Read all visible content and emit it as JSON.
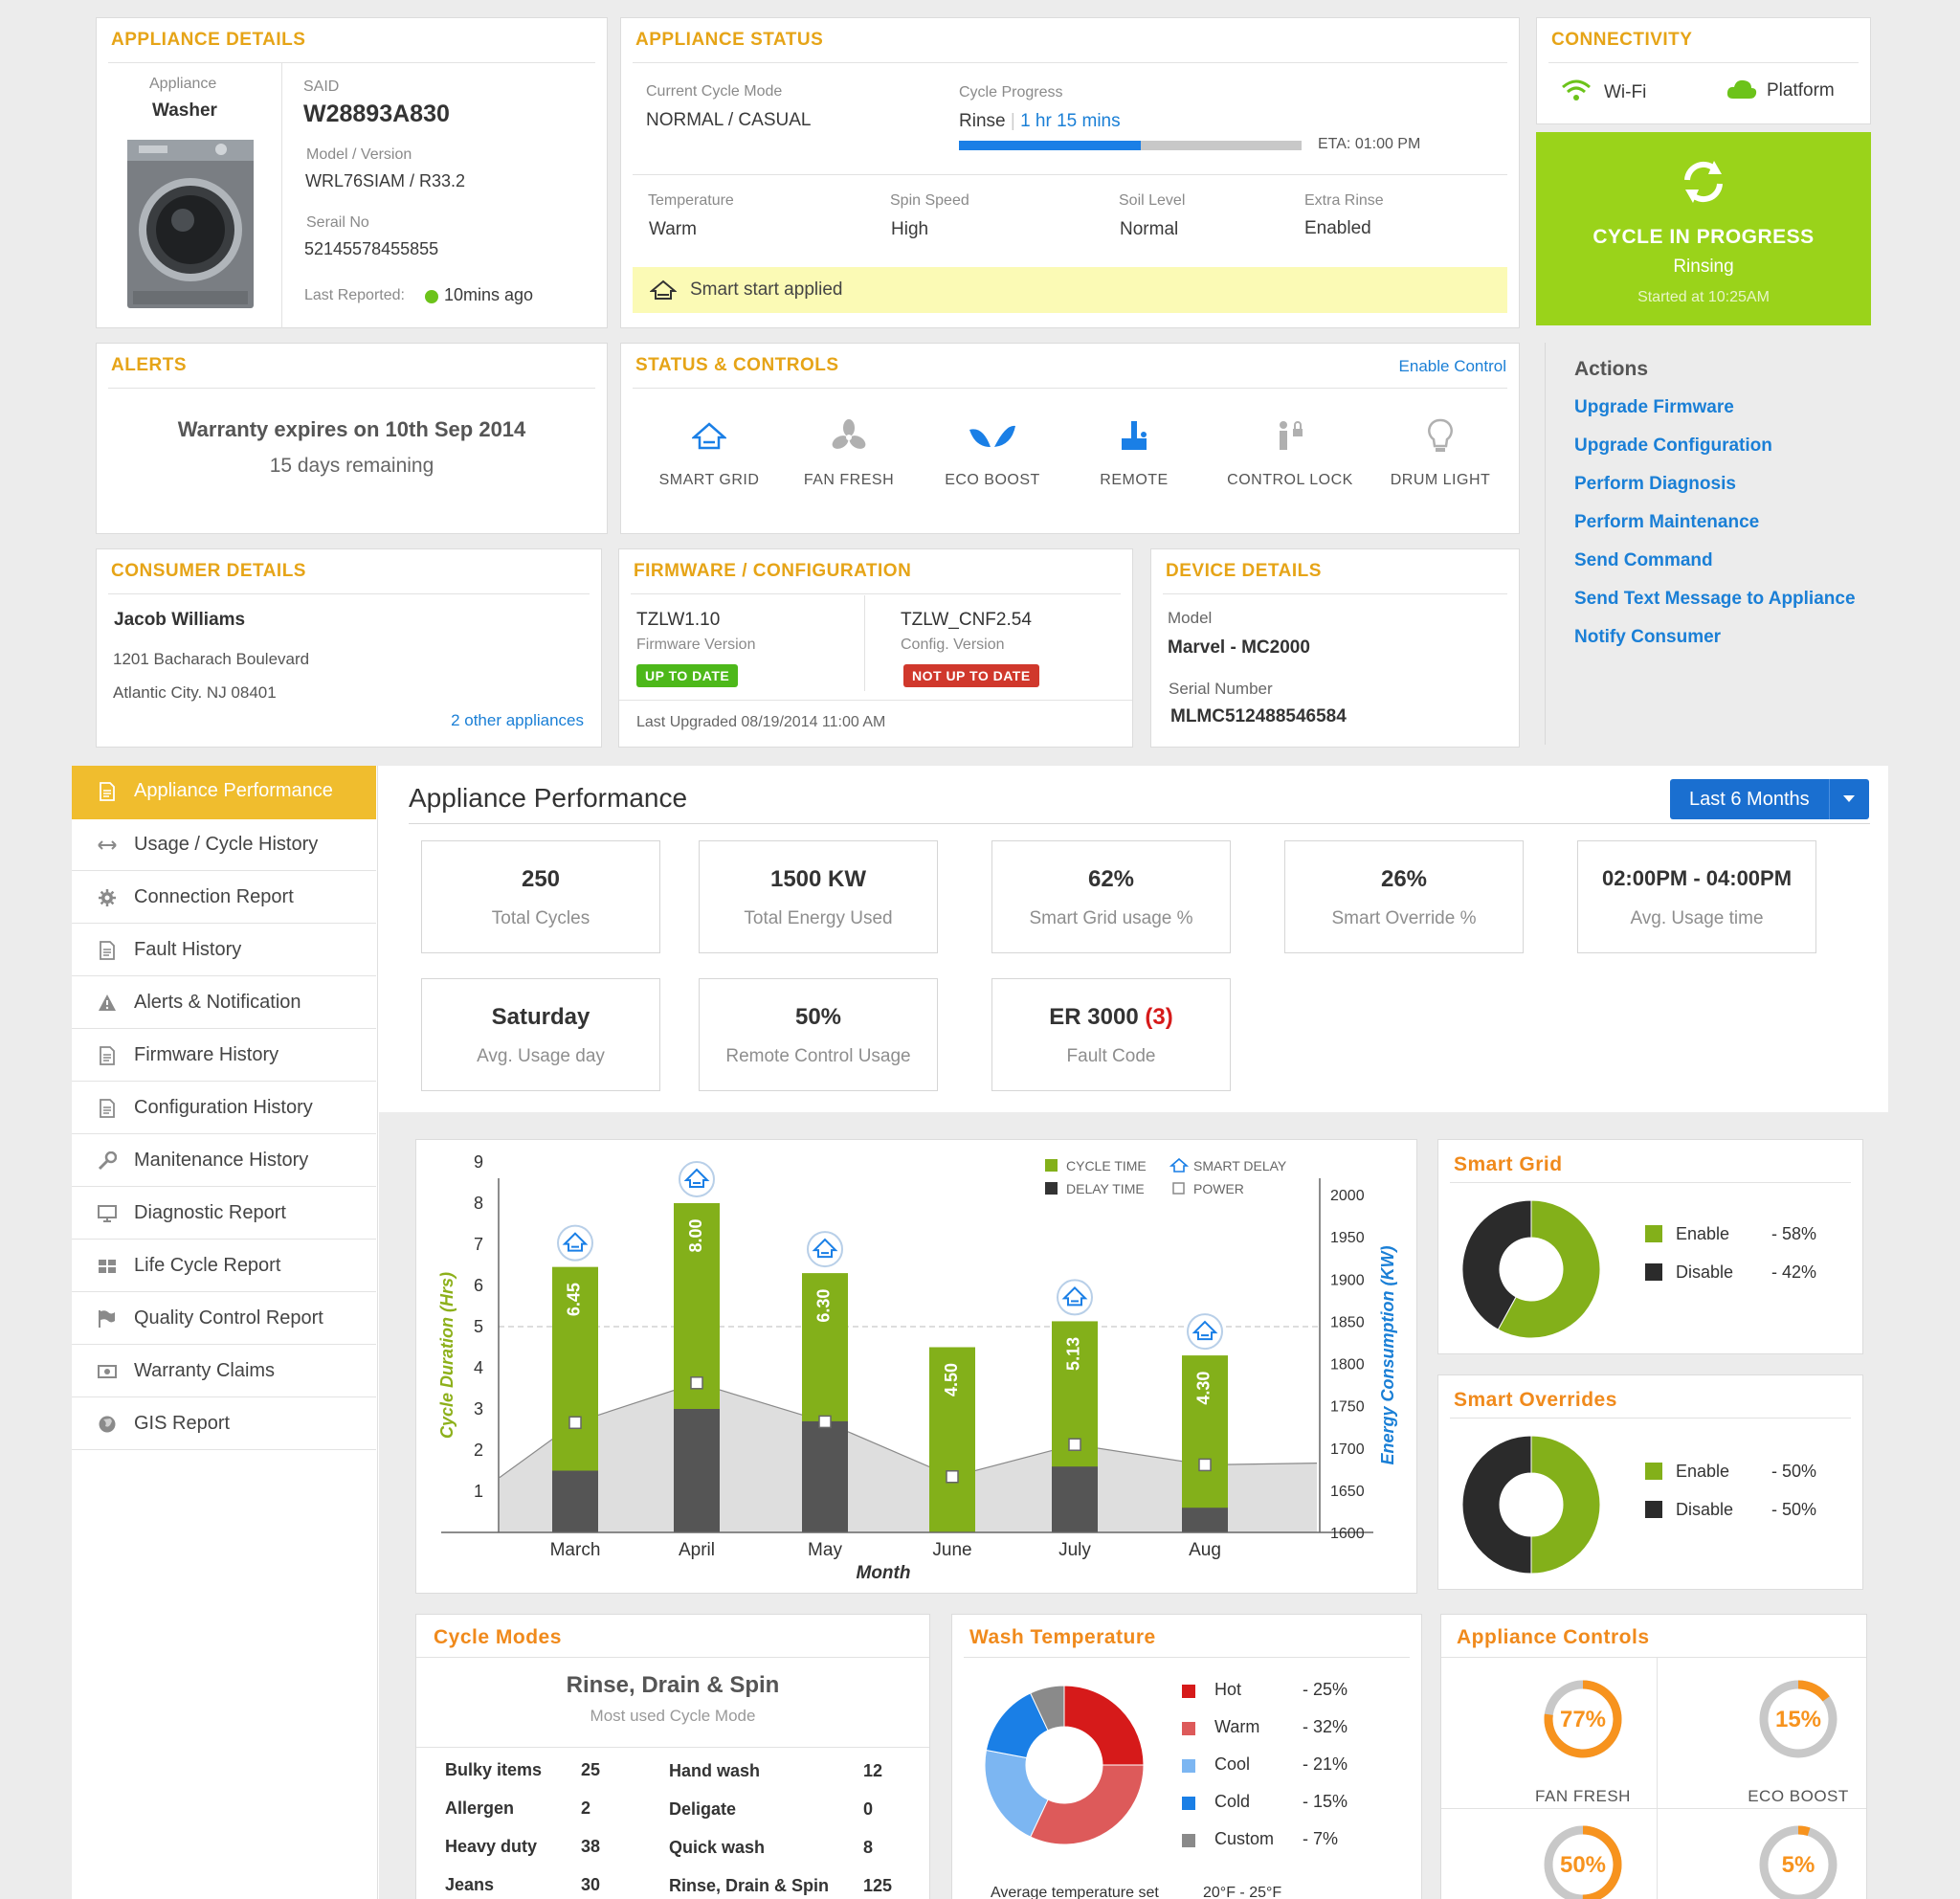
{
  "appliance_details": {
    "title": "APPLIANCE DETAILS",
    "appliance_label": "Appliance",
    "appliance_value": "Washer",
    "said_label": "SAID",
    "said_value": "W28893A830",
    "model_label": "Model / Version",
    "model_value": "WRL76SIAM / R33.2",
    "serial_label": "Serail No",
    "serial_value": "52145578455855",
    "last_reported_label": "Last Reported:",
    "last_reported_value": "10mins ago"
  },
  "appliance_status": {
    "title": "APPLIANCE STATUS",
    "cycle_mode_label": "Current Cycle Mode",
    "cycle_mode_value": "NORMAL / CASUAL",
    "cycle_progress_label": "Cycle Progress",
    "cycle_stage": "Rinse",
    "cycle_remaining": "1 hr 15 mins",
    "progress_fraction": 0.53,
    "eta": "ETA: 01:00 PM",
    "temperature_label": "Temperature",
    "temperature_value": "Warm",
    "spin_label": "Spin Speed",
    "spin_value": "High",
    "soil_label": "Soil Level",
    "soil_value": "Normal",
    "rinse_label": "Extra Rinse",
    "rinse_value": "Enabled",
    "smart_start": "Smart start applied"
  },
  "connectivity": {
    "title": "CONNECTIVITY",
    "wifi_label": "Wi-Fi",
    "platform_label": "Platform"
  },
  "cycle_banner": {
    "title": "CYCLE IN PROGRESS",
    "stage": "Rinsing",
    "started": "Started at 10:25AM",
    "color": "#9ad31a"
  },
  "alerts": {
    "title": "ALERTS",
    "message": "Warranty expires on 10th Sep 2014",
    "remaining": "15 days remaining"
  },
  "status_controls": {
    "title": "STATUS & CONTROLS",
    "enable_link": "Enable Control",
    "items": [
      {
        "label": "SMART GRID",
        "icon": "smart-grid-icon"
      },
      {
        "label": "FAN FRESH",
        "icon": "fan-icon"
      },
      {
        "label": "ECO BOOST",
        "icon": "leaf-icon"
      },
      {
        "label": "REMOTE",
        "icon": "remote-icon"
      },
      {
        "label": "CONTROL LOCK",
        "icon": "control-lock-icon"
      },
      {
        "label": "DRUM LIGHT",
        "icon": "bulb-icon"
      }
    ]
  },
  "actions": {
    "title": "Actions",
    "items": [
      "Upgrade Firmware",
      "Upgrade Configuration",
      "Perform Diagnosis",
      "Perform Maintenance",
      "Send Command",
      "Send Text Message to Appliance",
      "Notify Consumer"
    ]
  },
  "consumer": {
    "title": "CONSUMER DETAILS",
    "name": "Jacob Williams",
    "address1": "1201 Bacharach Boulevard",
    "address2": "Atlantic City. NJ 08401",
    "other_link": "2 other appliances"
  },
  "firmware": {
    "title": "FIRMWARE / CONFIGURATION",
    "fw_value": "TZLW1.10",
    "fw_label": "Firmware Version",
    "fw_badge": "UP TO DATE",
    "cfg_value": "TZLW_CNF2.54",
    "cfg_label": "Config. Version",
    "cfg_badge": "NOT UP TO DATE",
    "last_upgraded": "Last Upgraded 08/19/2014 11:00 AM"
  },
  "device": {
    "title": "DEVICE DETAILS",
    "model_label": "Model",
    "model_value": "Marvel - MC2000",
    "serial_label": "Serial Number",
    "serial_value": "MLMC512488546584"
  },
  "sidebar": {
    "items": [
      {
        "label": "Appliance Performance",
        "icon": "document-icon",
        "active": true
      },
      {
        "label": "Usage / Cycle History",
        "icon": "arrows-icon"
      },
      {
        "label": "Connection Report",
        "icon": "gear-icon"
      },
      {
        "label": "Fault History",
        "icon": "document-icon"
      },
      {
        "label": "Alerts & Notification",
        "icon": "warning-icon"
      },
      {
        "label": "Firmware History",
        "icon": "document-icon"
      },
      {
        "label": "Configuration History",
        "icon": "document-icon"
      },
      {
        "label": "Manitenance History",
        "icon": "wrench-icon"
      },
      {
        "label": "Diagnostic Report",
        "icon": "monitor-icon"
      },
      {
        "label": "Life Cycle Report",
        "icon": "grid-icon"
      },
      {
        "label": "Quality Control Report",
        "icon": "flag-icon"
      },
      {
        "label": "Warranty Claims",
        "icon": "ticket-icon"
      },
      {
        "label": "GIS Report",
        "icon": "globe-icon"
      }
    ]
  },
  "performance": {
    "title": "Appliance Performance",
    "range": "Last 6 Months",
    "tiles": [
      {
        "value": "250",
        "label": "Total Cycles"
      },
      {
        "value": "1500 KW",
        "label": "Total Energy Used"
      },
      {
        "value": "62%",
        "label": "Smart Grid usage %"
      },
      {
        "value": "26%",
        "label": "Smart Override %"
      },
      {
        "value": "02:00PM - 04:00PM",
        "label": "Avg. Usage time"
      },
      {
        "value": "Saturday",
        "label": "Avg. Usage day"
      },
      {
        "value": "50%",
        "label": "Remote Control Usage"
      },
      {
        "value": "ER 3000",
        "value_extra": "(3)",
        "label": "Fault Code"
      }
    ]
  },
  "chart_data": [
    {
      "type": "bar",
      "categories": [
        "March",
        "April",
        "May",
        "June",
        "July",
        "Aug"
      ],
      "series": [
        {
          "name": "CYCLE TIME",
          "values": [
            6.45,
            8.0,
            6.3,
            4.5,
            5.13,
            4.3
          ],
          "labels": [
            "6.45",
            "8.00",
            "6.30",
            "4.50",
            "5.13",
            "4.30"
          ]
        },
        {
          "name": "DELAY TIME",
          "values": [
            1.5,
            3.0,
            2.7,
            0,
            1.6,
            0.6
          ]
        },
        {
          "name": "POWER",
          "axis": "right",
          "values": [
            1730,
            1777,
            1731,
            1666,
            1704,
            1680
          ]
        }
      ],
      "smart_delay": [
        true,
        true,
        true,
        false,
        true,
        true
      ],
      "legend": [
        "CYCLE TIME",
        "SMART DELAY",
        "DELAY TIME",
        "POWER"
      ],
      "xlabel": "Month",
      "ylabel": "Cycle Duration (Hrs)",
      "y2label": "Energy Consumption (KW)",
      "ylim": [
        0,
        9
      ],
      "y2lim": [
        1600,
        2000
      ],
      "yticks": [
        1,
        2,
        3,
        4,
        5,
        6,
        7,
        8,
        9
      ],
      "y2ticks": [
        1600,
        1650,
        1700,
        1750,
        1800,
        1850,
        1900,
        1950,
        2000
      ],
      "reference_line": 5
    },
    {
      "type": "pie",
      "title": "Smart Grid",
      "labels": [
        "Enable",
        "Disable"
      ],
      "values": [
        58,
        42
      ],
      "display": [
        "- 58%",
        "- 42%"
      ],
      "colors": [
        "#83b01a",
        "#2b2b2b"
      ]
    },
    {
      "type": "pie",
      "title": "Smart Overrides",
      "labels": [
        "Enable",
        "Disable"
      ],
      "values": [
        50,
        50
      ],
      "display": [
        "- 50%",
        "- 50%"
      ],
      "colors": [
        "#83b01a",
        "#2b2b2b"
      ]
    },
    {
      "type": "pie",
      "title": "Wash Temperature",
      "labels": [
        "Hot",
        "Warm",
        "Cool",
        "Cold",
        "Custom"
      ],
      "values": [
        25,
        32,
        21,
        15,
        7
      ],
      "display": [
        "- 25%",
        "- 32%",
        "- 21%",
        "- 15%",
        "- 7%"
      ],
      "colors": [
        "#d61a1a",
        "#dd5a5a",
        "#7cb6f2",
        "#1a7fe6",
        "#8a8a8a"
      ],
      "note_label": "Average temperature set",
      "note_value": "20°F - 25°F"
    }
  ],
  "chart_colors": {
    "cycle": "#83b01a",
    "delay": "#555555",
    "power_area": "#dedede",
    "axis2": "#1a7fd6",
    "axis1": "#8db01a"
  },
  "cycle_modes": {
    "title": "Cycle Modes",
    "top": "Rinse, Drain & Spin",
    "top_label": "Most used Cycle Mode",
    "left": [
      {
        "name": "Bulky items",
        "count": "25"
      },
      {
        "name": "Allergen",
        "count": "2"
      },
      {
        "name": "Heavy duty",
        "count": "38"
      },
      {
        "name": "Jeans",
        "count": "30"
      }
    ],
    "right": [
      {
        "name": "Hand wash",
        "count": "12"
      },
      {
        "name": "Deligate",
        "count": "0"
      },
      {
        "name": "Quick wash",
        "count": "8"
      },
      {
        "name": "Rinse, Drain & Spin",
        "count": "125"
      }
    ]
  },
  "appliance_controls": {
    "title": "Appliance Controls",
    "items": [
      {
        "label": "FAN FRESH",
        "percent": "77%",
        "value": 77
      },
      {
        "label": "ECO BOOST",
        "percent": "15%",
        "value": 15
      },
      {
        "label": "",
        "percent": "50%",
        "value": 50
      },
      {
        "label": "",
        "percent": "5%",
        "value": 5
      }
    ]
  }
}
